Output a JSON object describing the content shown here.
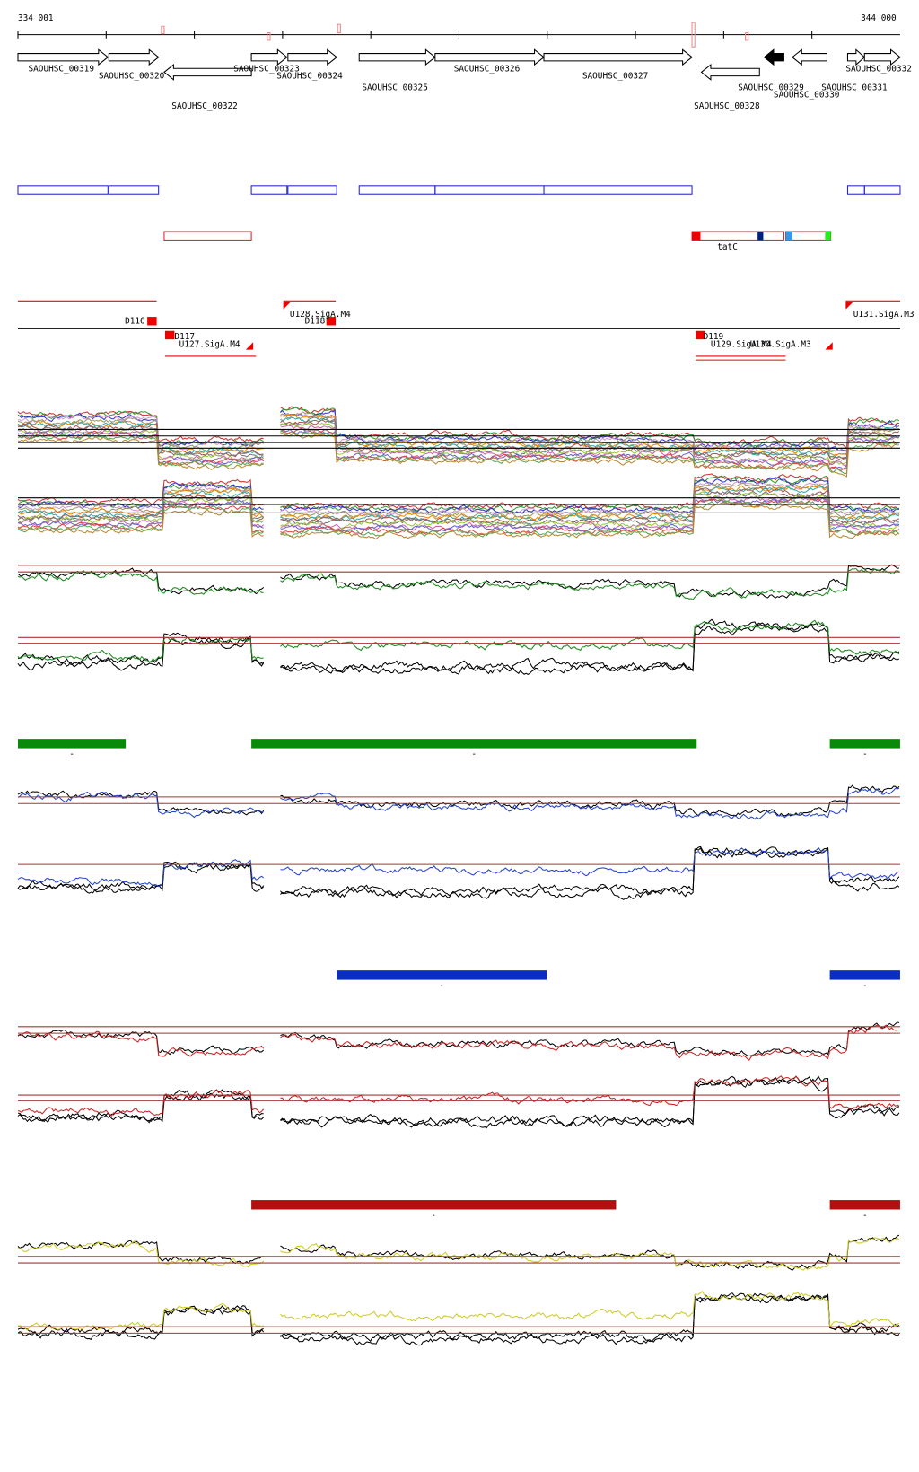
{
  "header": {
    "start": "334 001",
    "end": "344 000"
  },
  "genes": [
    "SAOUHSC_00319",
    "SAOUHSC_00320",
    "SAOUHSC_00322",
    "SAOUHSC_00323",
    "SAOUHSC_00324",
    "SAOUHSC_00325",
    "SAOUHSC_00326",
    "SAOUHSC_00327",
    "SAOUHSC_00328",
    "SAOUHSC_00329",
    "SAOUHSC_00330",
    "SAOUHSC_00331",
    "SAOUHSC_00332"
  ],
  "operon_label": "tatC",
  "features": [
    "D116",
    "D117",
    "U127.SigA.M4",
    "U128.SigA.M4",
    "D118",
    "D119",
    "U129.SigA.M4",
    "U130.SigA.M3",
    "U131.SigA.M3"
  ],
  "bar_labels": [
    "-",
    "-",
    "-",
    "-",
    "-",
    "-",
    "-"
  ]
}
